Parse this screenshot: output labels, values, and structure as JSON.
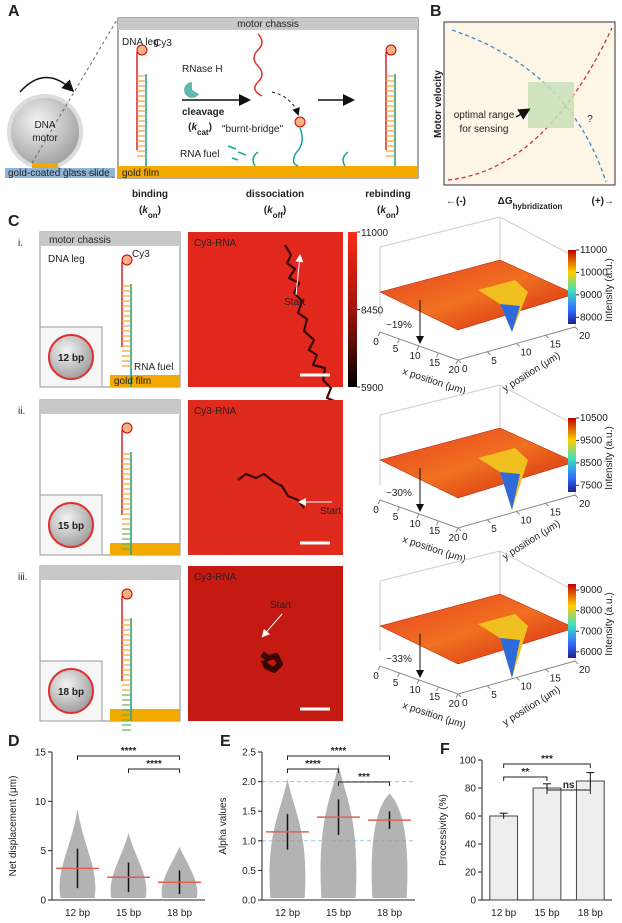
{
  "panel_a": {
    "label": "A",
    "motor_chassis": "motor chassis",
    "dna_leg": "DNA leg",
    "cy3": "Cy3",
    "rnase_h": "RNase H",
    "cleavage": "cleavage",
    "k_cat": [
      "(",
      "k",
      "cat",
      ")"
    ],
    "burnt_bridge": "\"burnt-bridge\"",
    "rna_fuel": "RNA fuel",
    "gold_film": "gold film",
    "dna_motor": [
      "DNA",
      "motor"
    ],
    "glass_slide": "gold-coated glass slide",
    "steps": [
      {
        "name": "binding",
        "rate": [
          "(",
          "k",
          "on",
          ")"
        ]
      },
      {
        "name": "dissociation",
        "rate": [
          "(",
          "k",
          "off",
          ")"
        ]
      },
      {
        "name": "rebinding",
        "rate": [
          "(",
          "k",
          "on",
          ")"
        ]
      }
    ]
  },
  "panel_b": {
    "label": "B",
    "y_label": "Motor velocity",
    "annotation": [
      "optimal range",
      "for sensing"
    ],
    "question": "?",
    "x_left": "←(-)",
    "x_center": [
      "ΔG",
      "hybridization"
    ],
    "x_right": "(+)→"
  },
  "panel_c": {
    "label": "C",
    "colorbar_lim": [
      5900,
      11000
    ],
    "colorbar_ticks": [
      11000,
      8450,
      5900
    ],
    "x_axis_label": "x position (μm)",
    "y_axis_label": "y position (μm)",
    "intensity_label": "Intensity (a.u.)",
    "xyticks": [
      0,
      5,
      10,
      15,
      20
    ],
    "rows": [
      {
        "label": "i.",
        "chassis": "motor chassis",
        "dna_leg": "DNA leg",
        "cy3": "Cy3",
        "length": "12 bp",
        "rna_fuel": "RNA fuel",
        "gold_film": "gold film",
        "image_label": "Cy3-RNA",
        "start": "Start",
        "drop": "~19%",
        "intensity_lim": [
          7700,
          11000
        ],
        "intensity_ticks": [
          11000,
          10000,
          9000,
          8000
        ]
      },
      {
        "label": "ii.",
        "length": "15 bp",
        "image_label": "Cy3-RNA",
        "start": "Start",
        "drop": "~30%",
        "intensity_lim": [
          7200,
          10500
        ],
        "intensity_ticks": [
          10500,
          9500,
          8500,
          7500
        ]
      },
      {
        "label": "iii.",
        "length": "18 bp",
        "image_label": "Cy3-RNA",
        "start": "Start",
        "drop": "~33%",
        "intensity_lim": [
          5700,
          9300
        ],
        "intensity_ticks": [
          9000,
          8000,
          7000,
          6000
        ]
      }
    ]
  },
  "chart_data": [
    {
      "type": "swarm",
      "label": "D",
      "y_label": "Net displacement (μm)",
      "categories": [
        "12 bp",
        "15 bp",
        "18 bp"
      ],
      "values": [
        3.2,
        2.3,
        1.8
      ],
      "errors": [
        2,
        1.5,
        1.2
      ],
      "color": "#999999",
      "mean_color": "#e06050",
      "ylim": [
        0,
        15
      ],
      "yticks": [
        0,
        5,
        10,
        15
      ],
      "comparisons": [
        {
          "groups": [
            "12 bp",
            "18 bp"
          ],
          "label": "****"
        },
        {
          "groups": [
            "15 bp",
            "18 bp"
          ],
          "label": "****"
        }
      ]
    },
    {
      "type": "swarm",
      "label": "E",
      "y_label": "Alpha values",
      "categories": [
        "12 bp",
        "15 bp",
        "18 bp"
      ],
      "values": [
        1.15,
        1.4,
        1.35
      ],
      "errors": [
        0.3,
        0.3,
        0.15
      ],
      "color": "#999999",
      "mean_color": "#e06050",
      "ylim": [
        0,
        2.5
      ],
      "yticks": [
        {
          "value": 0,
          "label": "0.0"
        },
        {
          "value": 0.5,
          "label": "0.5"
        },
        {
          "value": 1,
          "label": "1.0"
        },
        {
          "value": 1.5,
          "label": "1.5"
        },
        {
          "value": 2,
          "label": "2.0"
        },
        {
          "value": 2.5,
          "label": "2.5"
        }
      ],
      "reference_lines": [
        {
          "value": 2,
          "color": "#f2a0a0"
        },
        {
          "value": 1,
          "color": "#9fc5e8"
        }
      ],
      "comparisons": [
        {
          "groups": [
            "12 bp",
            "18 bp"
          ],
          "label": "****"
        },
        {
          "groups": [
            "12 bp",
            "15 bp"
          ],
          "label": "****"
        },
        {
          "groups": [
            "15 bp",
            "18 bp"
          ],
          "label": "***"
        }
      ]
    },
    {
      "type": "bar",
      "label": "F",
      "y_label": "Processivity (%)",
      "categories": [
        "12 bp",
        "15 bp",
        "18 bp"
      ],
      "values": [
        60,
        80,
        85
      ],
      "errors": [
        2,
        3,
        6
      ],
      "color": "#eeeeee",
      "ylim": [
        0,
        100
      ],
      "yticks": [
        0,
        20,
        40,
        60,
        80,
        100
      ],
      "comparisons": [
        {
          "groups": [
            "12 bp",
            "18 bp"
          ],
          "label": "***"
        },
        {
          "groups": [
            "12 bp",
            "15 bp"
          ],
          "label": "**"
        },
        {
          "groups": [
            "15 bp",
            "18 bp"
          ],
          "label": "ns"
        }
      ]
    }
  ]
}
